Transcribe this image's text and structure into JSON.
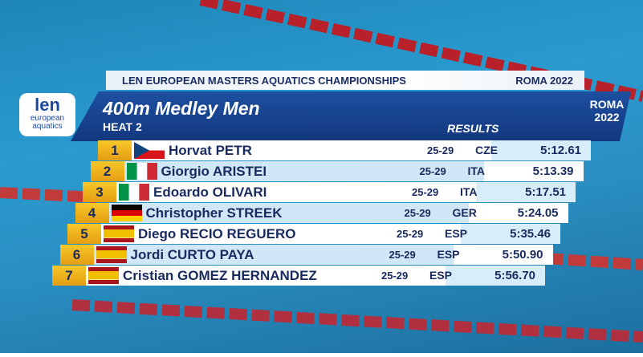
{
  "header": {
    "event": "LEN EUROPEAN MASTERS AQUATICS CHAMPIONSHIPS",
    "venue": "ROMA 2022"
  },
  "logos": {
    "left_mark": "len",
    "left_text": "european aquatics",
    "right_city": "ROMA",
    "right_year": "2022"
  },
  "title": "400m Medley Men",
  "heat": "HEAT 2",
  "results_label": "RESULTS",
  "table": {
    "rows": [
      [
        "1",
        "Horvat PETR",
        "25-29",
        "CZE",
        "5:12.61"
      ],
      [
        "2",
        "Giorgio ARISTEI",
        "25-29",
        "ITA",
        "5:13.39"
      ],
      [
        "3",
        "Edoardo OLIVARI",
        "25-29",
        "ITA",
        "5:17.51"
      ],
      [
        "4",
        "Christopher STREEK",
        "25-29",
        "GER",
        "5:24.05"
      ],
      [
        "5",
        "Diego RECIO REGUERO",
        "25-29",
        "ESP",
        "5:35.46"
      ],
      [
        "6",
        "Jordi CURTO PAYA",
        "25-29",
        "ESP",
        "5:50.90"
      ],
      [
        "7",
        "Cristian GOMEZ HERNANDEZ",
        "25-29",
        "ESP",
        "5:56.70"
      ]
    ]
  }
}
